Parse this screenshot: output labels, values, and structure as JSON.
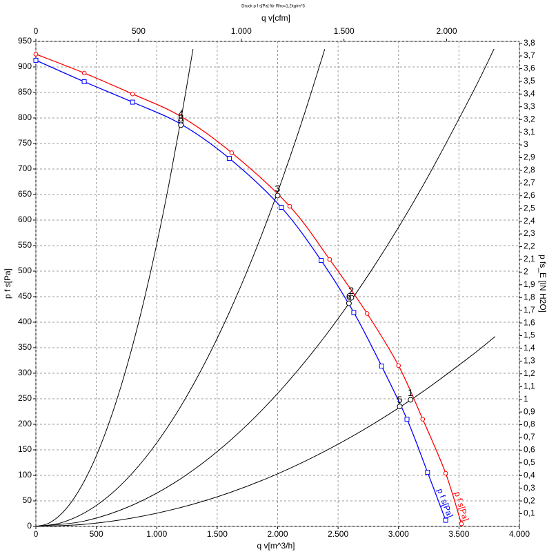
{
  "chart_data": {
    "type": "line",
    "title": "Druck p f s[Pa] für Rho=1,2kg/m^3",
    "x_label": "q v[m^3/h]",
    "x2_label": "q v[cfm]",
    "y_label": "p f s[Pa]",
    "y2_label": "p fs_E [IN H2O]",
    "grid": true,
    "xlim": [
      0,
      4000
    ],
    "xticks": [
      0,
      500,
      {
        "value": 1000,
        "label": "1.000"
      },
      {
        "value": 1500,
        "label": "1.500"
      },
      {
        "value": 2000,
        "label": "2.000"
      },
      {
        "value": 2500,
        "label": "2.500"
      },
      {
        "value": 3000,
        "label": "3.000"
      },
      {
        "value": 3500,
        "label": "3.500"
      },
      {
        "value": 4000,
        "label": "4.000"
      }
    ],
    "x2lim": [
      0,
      2354.3
    ],
    "x2ticks": [
      0,
      500,
      {
        "value": 1000,
        "label": "1.000"
      },
      {
        "value": 1500,
        "label": "1.500"
      },
      {
        "value": 2000,
        "label": "2.000"
      }
    ],
    "ylim": [
      0,
      950
    ],
    "yticks": [
      0,
      50,
      100,
      150,
      200,
      250,
      300,
      350,
      400,
      450,
      500,
      550,
      600,
      650,
      700,
      750,
      800,
      850,
      900,
      950
    ],
    "y2lim": [
      0,
      3.814
    ],
    "y2ticks": [
      {
        "value": 0.1,
        "label": "0,1"
      },
      {
        "value": 0.2,
        "label": "0,2"
      },
      {
        "value": 0.3,
        "label": "0,3"
      },
      {
        "value": 0.4,
        "label": "0,4"
      },
      {
        "value": 0.5,
        "label": "0,5"
      },
      {
        "value": 0.6,
        "label": "0,6"
      },
      {
        "value": 0.7,
        "label": "0,7"
      },
      {
        "value": 0.8,
        "label": "0,8"
      },
      {
        "value": 0.9,
        "label": "0,9"
      },
      1,
      {
        "value": 1.1,
        "label": "1,1"
      },
      {
        "value": 1.2,
        "label": "1,2"
      },
      {
        "value": 1.3,
        "label": "1,3"
      },
      {
        "value": 1.4,
        "label": "1,4"
      },
      {
        "value": 1.5,
        "label": "1,5"
      },
      {
        "value": 1.6,
        "label": "1,6"
      },
      {
        "value": 1.7,
        "label": "1,7"
      },
      {
        "value": 1.8,
        "label": "1,8"
      },
      {
        "value": 1.9,
        "label": "1,9"
      },
      2,
      {
        "value": 2.1,
        "label": "2,1"
      },
      {
        "value": 2.2,
        "label": "2,2"
      },
      {
        "value": 2.3,
        "label": "2,3"
      },
      {
        "value": 2.4,
        "label": "2,4"
      },
      {
        "value": 2.5,
        "label": "2,5"
      },
      {
        "value": 2.6,
        "label": "2,6"
      },
      {
        "value": 2.7,
        "label": "2,7"
      },
      {
        "value": 2.8,
        "label": "2,8"
      },
      {
        "value": 2.9,
        "label": "2,9"
      },
      3,
      {
        "value": 3.1,
        "label": "3,1"
      },
      {
        "value": 3.2,
        "label": "3,2"
      },
      {
        "value": 3.3,
        "label": "3,3"
      },
      {
        "value": 3.4,
        "label": "3,4"
      },
      {
        "value": 3.5,
        "label": "3,5"
      },
      {
        "value": 3.6,
        "label": "3,6"
      },
      {
        "value": 3.7,
        "label": "3,7"
      },
      {
        "value": 3.8,
        "label": "3,8"
      }
    ],
    "series": [
      {
        "name": "p f s[Pa]",
        "color": "#ff0000",
        "marker": "circle",
        "x": [
          0,
          400,
          800,
          1200,
          1620,
          2100,
          2430,
          2740,
          3000,
          3200,
          3390,
          3520
        ],
        "values": [
          925,
          888,
          847,
          803,
          732,
          627,
          523,
          417,
          315,
          210,
          104,
          5
        ]
      },
      {
        "name": "p f s[Pa]",
        "color": "#0000ff",
        "marker": "square",
        "x": [
          0,
          400,
          800,
          1200,
          1600,
          2030,
          2360,
          2630,
          2860,
          3070,
          3240,
          3390
        ],
        "values": [
          913,
          871,
          831,
          788,
          721,
          625,
          521,
          419,
          314,
          210,
          106,
          12
        ]
      }
    ],
    "system_curves": [
      {
        "color": "#000000",
        "x": [
          0,
          100,
          200,
          300,
          400,
          500,
          600,
          700,
          800,
          900,
          1000,
          1100,
          1200,
          1300
        ],
        "values": [
          0,
          5.5,
          22.1,
          49.8,
          88.5,
          138.3,
          199.2,
          271.1,
          354.1,
          448.2,
          553.3,
          669.5,
          796.8,
          935.1
        ]
      },
      {
        "color": "#000000",
        "x": [
          0,
          200,
          400,
          600,
          800,
          1000,
          1200,
          1400,
          1600,
          1800,
          2000,
          2200,
          2390
        ],
        "values": [
          0,
          6.5,
          26.2,
          58.9,
          104.8,
          163.7,
          235.7,
          320.9,
          419.1,
          530.4,
          654.8,
          792.3,
          935
        ]
      },
      {
        "color": "#000000",
        "x": [
          0,
          400,
          800,
          1200,
          1600,
          2000,
          2400,
          2800,
          3200,
          3600,
          3790
        ],
        "values": [
          0,
          10.4,
          41.7,
          93.7,
          166.7,
          260.4,
          375,
          510.4,
          666.6,
          843.7,
          935.1
        ]
      },
      {
        "color": "#000000",
        "x": [
          0,
          400,
          800,
          1200,
          1600,
          2000,
          2400,
          2800,
          3200,
          3600,
          3800
        ],
        "values": [
          0,
          4.1,
          16.5,
          37.1,
          65.9,
          103,
          148.4,
          202,
          263.8,
          333.9,
          372
        ]
      }
    ],
    "points": [
      {
        "label": "1",
        "x": 3100,
        "y": 248
      },
      {
        "label": "2",
        "x": 2610,
        "y": 448
      },
      {
        "label": "3",
        "x": 2000,
        "y": 648
      },
      {
        "label": "4",
        "x": 1200,
        "y": 795
      },
      {
        "label": "5",
        "x": 3010,
        "y": 235
      },
      {
        "label": "6",
        "x": 2590,
        "y": 437
      },
      {
        "label": "8",
        "x": 1200,
        "y": 786
      }
    ]
  }
}
